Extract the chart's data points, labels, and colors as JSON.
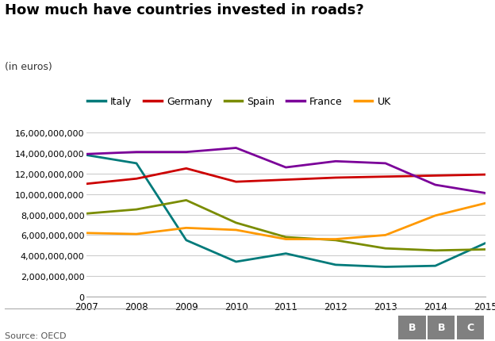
{
  "title": "How much have countries invested in roads?",
  "subtitle": "(in euros)",
  "years": [
    2007,
    2008,
    2009,
    2010,
    2011,
    2012,
    2013,
    2014,
    2015
  ],
  "series": {
    "Italy": [
      13800000000,
      13000000000,
      5500000000,
      3400000000,
      4200000000,
      3100000000,
      2900000000,
      3000000000,
      5200000000
    ],
    "Germany": [
      11000000000,
      11500000000,
      12500000000,
      11200000000,
      11400000000,
      11600000000,
      11700000000,
      11800000000,
      11900000000
    ],
    "Spain": [
      8100000000,
      8500000000,
      9400000000,
      7200000000,
      5800000000,
      5500000000,
      4700000000,
      4500000000,
      4600000000
    ],
    "France": [
      13900000000,
      14100000000,
      14100000000,
      14500000000,
      12600000000,
      13200000000,
      13000000000,
      10900000000,
      10100000000
    ],
    "UK": [
      6200000000,
      6100000000,
      6700000000,
      6500000000,
      5600000000,
      5600000000,
      6000000000,
      7900000000,
      9100000000
    ]
  },
  "colors": {
    "Italy": "#007a7a",
    "Germany": "#cc0000",
    "Spain": "#7a8c00",
    "France": "#7b0099",
    "UK": "#ff9900"
  },
  "ylim": [
    0,
    16000000000
  ],
  "ytick_step": 2000000000,
  "source_text": "Source: OECD",
  "background_color": "#ffffff",
  "grid_color": "#cccccc",
  "bbc_letters": [
    "B",
    "B",
    "C"
  ],
  "bbc_color": "#808080"
}
